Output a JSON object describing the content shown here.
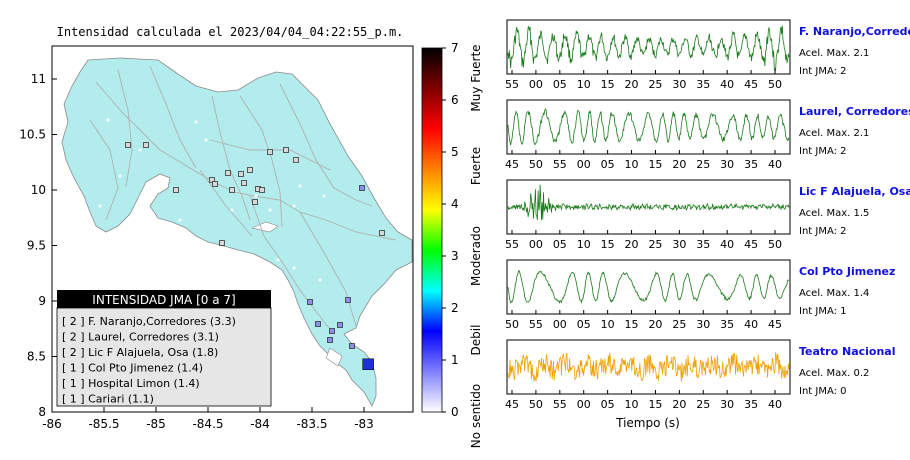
{
  "title": "Intensidad calculada el 2023/04/04_04:22:55_p.m.",
  "map": {
    "x_ticks": [
      "-86",
      "-85.5",
      "-85",
      "-84.5",
      "-84",
      "-83.5",
      "-83"
    ],
    "y_ticks": [
      "11",
      "10.5",
      "10",
      "9.5",
      "9",
      "8.5",
      "8"
    ],
    "land_color": "#b3ecec",
    "sea_color": "#ffffff",
    "epicenter": {
      "lon": -82.96,
      "lat": 8.43,
      "color": "#1f2fd9"
    }
  },
  "legend": {
    "title": "INTENSIDAD JMA [0 a 7]",
    "items": [
      "[ 2 ]  F. Naranjo,Corredores (3.3)",
      "[ 2 ]  Laurel, Corredores (3.1)",
      "[ 2 ]  Lic F Alajuela, Osa (1.8)",
      "[ 1 ]  Col Pto Jimenez (1.4)",
      "[ 1 ]  Hospital Limon (1.4)",
      "[ 1 ]  Cariari (1.1)"
    ]
  },
  "colorbar": {
    "ticks": [
      "0",
      "1",
      "2",
      "3",
      "4",
      "5",
      "6",
      "7"
    ],
    "labels": [
      "No sentido",
      "Debil",
      "Moderado",
      "Fuerte",
      "Muy Fuerte"
    ],
    "colors": [
      "#ffffff",
      "#8080ff",
      "#0000ff",
      "#00ffff",
      "#00ff00",
      "#ffff00",
      "#ff8000",
      "#ff0000",
      "#800000",
      "#000000"
    ]
  },
  "chart_data": {
    "type": "line",
    "xlabel": "Tiempo (s)",
    "panels": [
      {
        "station": "F. Naranjo,Corredores",
        "accel_label": "Acel. Max. 2.1",
        "jma_label": "Int JMA: 2",
        "color": "#1a7a1a",
        "ticks": [
          "55",
          "00",
          "05",
          "10",
          "15",
          "20",
          "25",
          "30",
          "35",
          "40",
          "45",
          "50"
        ],
        "tick_start": 55,
        "seconds_per_tick": 5
      },
      {
        "station": "Laurel, Corredores",
        "accel_label": "Acel. Max. 2.1",
        "jma_label": "Int JMA: 2",
        "color": "#1a7a1a",
        "ticks": [
          "45",
          "50",
          "55",
          "00",
          "05",
          "10",
          "15",
          "20",
          "25",
          "30",
          "35",
          "40"
        ],
        "tick_start": 45,
        "seconds_per_tick": 5
      },
      {
        "station": "Lic F Alajuela, Osa",
        "accel_label": "Acel. Max. 1.5",
        "jma_label": "Int JMA: 2",
        "color": "#1a7a1a",
        "ticks": [
          "55",
          "00",
          "05",
          "10",
          "15",
          "20",
          "25",
          "30",
          "35",
          "40",
          "45",
          "50"
        ],
        "tick_start": 55,
        "seconds_per_tick": 5
      },
      {
        "station": "Col Pto Jimenez",
        "accel_label": "Acel. Max. 1.4",
        "jma_label": "Int JMA: 1",
        "color": "#1a7a1a",
        "ticks": [
          "50",
          "55",
          "00",
          "05",
          "10",
          "15",
          "20",
          "25",
          "30",
          "35",
          "40",
          "45"
        ],
        "tick_start": 50,
        "seconds_per_tick": 5
      },
      {
        "station": "Teatro Nacional",
        "accel_label": "Acel. Max. 0.2",
        "jma_label": "Int JMA: 0",
        "color": "#f0a000",
        "ticks": [
          "45",
          "50",
          "55",
          "00",
          "05",
          "10",
          "15",
          "20",
          "25",
          "30",
          "35",
          "40"
        ],
        "tick_start": 45,
        "seconds_per_tick": 5
      }
    ]
  }
}
